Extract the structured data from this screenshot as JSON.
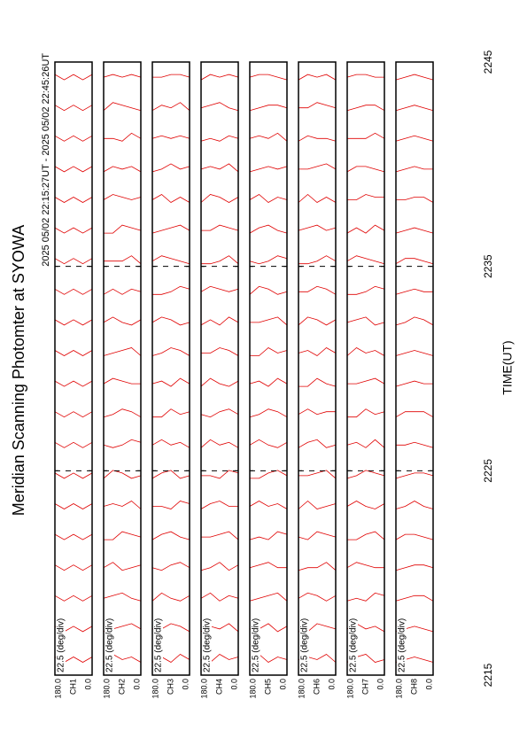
{
  "chart_data": {
    "type": "scan-stack",
    "title": "Meridian Scanning Photomter at SYOWA",
    "subtitle": "2025 05/02 22:15:27UT - 2025 05/02 22:45:26UT",
    "x_label": "TIME(UT)",
    "scale_label": "22.5 (deg/div)",
    "xlim": [
      2215,
      2245
    ],
    "xticks": [
      2215,
      2225,
      2235,
      2245
    ],
    "ylim": [
      0,
      180
    ],
    "yticks": [
      {
        "value": 0,
        "label": "0.0"
      },
      {
        "value": 180,
        "label": "180.0"
      }
    ],
    "grid": true,
    "color": "#e00000",
    "angles": [
      0,
      45,
      90,
      135,
      180
    ],
    "times": [
      2215.5,
      2217,
      2218.5,
      2220,
      2221.5,
      2223,
      2224.5,
      2226,
      2227.5,
      2229,
      2230.5,
      2232,
      2233.5,
      2235,
      2236.5,
      2238,
      2239.5,
      2241,
      2242.5,
      2244
    ],
    "panels": [
      {
        "name": "CH1",
        "scans": [
          [
            3,
            1,
            3,
            1,
            3
          ],
          [
            3,
            1,
            3,
            1,
            3
          ],
          [
            3,
            1,
            3,
            1,
            3
          ],
          [
            3,
            1,
            3,
            1,
            3
          ],
          [
            3,
            1,
            3,
            1,
            3
          ],
          [
            3,
            1,
            3,
            1,
            3
          ],
          [
            3,
            1,
            3,
            1,
            3
          ],
          [
            3,
            1,
            3,
            1,
            3
          ],
          [
            3,
            1,
            3,
            1,
            3
          ],
          [
            3,
            1,
            3,
            1,
            3
          ],
          [
            3,
            1,
            3,
            1,
            3
          ],
          [
            3,
            1,
            3,
            1,
            3
          ],
          [
            3,
            1,
            3,
            1,
            3
          ],
          [
            3,
            1,
            3,
            1,
            3
          ],
          [
            3,
            1,
            3,
            1,
            3
          ],
          [
            3,
            1,
            3,
            1,
            3
          ],
          [
            3,
            1,
            3,
            1,
            3
          ],
          [
            3,
            1,
            3,
            1,
            3
          ],
          [
            3,
            1,
            3,
            1,
            3
          ],
          [
            3,
            1,
            3,
            1,
            3
          ]
        ]
      },
      {
        "name": "CH2",
        "scans": [
          [
            1,
            3,
            2,
            4,
            1
          ],
          [
            2,
            4,
            3,
            2,
            1
          ],
          [
            1,
            2,
            4,
            3,
            2
          ],
          [
            3,
            2,
            1,
            4,
            2
          ],
          [
            2,
            3,
            4,
            1,
            1
          ],
          [
            1,
            4,
            2,
            3,
            2
          ],
          [
            2,
            1,
            3,
            4,
            1
          ],
          [
            3,
            4,
            2,
            1,
            2
          ],
          [
            1,
            3,
            4,
            2,
            1
          ],
          [
            2,
            2,
            3,
            4,
            2
          ],
          [
            1,
            4,
            3,
            2,
            1
          ],
          [
            3,
            1,
            2,
            4,
            2
          ],
          [
            2,
            3,
            1,
            3,
            1
          ],
          [
            1,
            4,
            2,
            2,
            2
          ],
          [
            2,
            3,
            4,
            1,
            1
          ],
          [
            3,
            2,
            3,
            4,
            2
          ],
          [
            1,
            3,
            2,
            3,
            1
          ],
          [
            2,
            4,
            1,
            2,
            2
          ],
          [
            1,
            2,
            3,
            4,
            1
          ],
          [
            2,
            3,
            2,
            3,
            2
          ]
        ]
      },
      {
        "name": "CH3",
        "scans": [
          [
            2,
            4,
            1,
            3,
            1
          ],
          [
            1,
            3,
            4,
            2,
            2
          ],
          [
            3,
            1,
            2,
            4,
            1
          ],
          [
            2,
            4,
            3,
            1,
            2
          ],
          [
            1,
            2,
            4,
            3,
            1
          ],
          [
            3,
            4,
            1,
            2,
            2
          ],
          [
            2,
            1,
            4,
            3,
            1
          ],
          [
            1,
            3,
            2,
            4,
            2
          ],
          [
            3,
            2,
            4,
            1,
            1
          ],
          [
            2,
            4,
            1,
            3,
            2
          ],
          [
            1,
            3,
            4,
            2,
            1
          ],
          [
            2,
            1,
            3,
            4,
            2
          ],
          [
            3,
            4,
            2,
            1,
            1
          ],
          [
            1,
            2,
            3,
            4,
            2
          ],
          [
            2,
            4,
            3,
            2,
            1
          ],
          [
            1,
            3,
            1,
            4,
            2
          ],
          [
            3,
            2,
            4,
            2,
            1
          ],
          [
            2,
            3,
            2,
            3,
            2
          ],
          [
            1,
            4,
            2,
            3,
            1
          ],
          [
            2,
            3,
            3,
            2,
            2
          ]
        ]
      },
      {
        "name": "CH4",
        "scans": [
          [
            3,
            2,
            4,
            1,
            2
          ],
          [
            1,
            4,
            2,
            3,
            1
          ],
          [
            2,
            3,
            1,
            4,
            2
          ],
          [
            3,
            1,
            4,
            2,
            1
          ],
          [
            1,
            4,
            3,
            2,
            2
          ],
          [
            2,
            2,
            4,
            3,
            1
          ],
          [
            3,
            4,
            1,
            2,
            2
          ],
          [
            1,
            3,
            2,
            4,
            1
          ],
          [
            2,
            4,
            3,
            1,
            2
          ],
          [
            3,
            1,
            2,
            4,
            1
          ],
          [
            1,
            3,
            4,
            2,
            2
          ],
          [
            2,
            4,
            1,
            3,
            1
          ],
          [
            3,
            2,
            3,
            4,
            2
          ],
          [
            1,
            4,
            2,
            1,
            1
          ],
          [
            2,
            3,
            4,
            2,
            2
          ],
          [
            3,
            1,
            3,
            4,
            1
          ],
          [
            1,
            4,
            2,
            3,
            2
          ],
          [
            2,
            3,
            1,
            2,
            1
          ],
          [
            1,
            2,
            4,
            3,
            2
          ],
          [
            2,
            3,
            2,
            3,
            1
          ]
        ]
      },
      {
        "name": "CH5",
        "scans": [
          [
            2,
            3,
            1,
            4,
            1
          ],
          [
            3,
            1,
            4,
            2,
            2
          ],
          [
            1,
            4,
            3,
            2,
            1
          ],
          [
            2,
            2,
            4,
            3,
            2
          ],
          [
            3,
            4,
            1,
            2,
            1
          ],
          [
            1,
            3,
            2,
            4,
            2
          ],
          [
            2,
            4,
            3,
            1,
            1
          ],
          [
            3,
            1,
            2,
            4,
            2
          ],
          [
            1,
            3,
            4,
            2,
            1
          ],
          [
            2,
            4,
            1,
            3,
            2
          ],
          [
            3,
            2,
            4,
            1,
            1
          ],
          [
            1,
            4,
            3,
            2,
            2
          ],
          [
            2,
            1,
            3,
            4,
            1
          ],
          [
            3,
            4,
            2,
            1,
            2
          ],
          [
            1,
            2,
            4,
            3,
            1
          ],
          [
            2,
            3,
            1,
            4,
            2
          ],
          [
            3,
            2,
            3,
            2,
            1
          ],
          [
            1,
            4,
            2,
            3,
            2
          ],
          [
            2,
            3,
            3,
            2,
            1
          ],
          [
            1,
            2,
            3,
            3,
            2
          ]
        ]
      },
      {
        "name": "CH6",
        "scans": [
          [
            1,
            4,
            2,
            3,
            2
          ],
          [
            2,
            3,
            4,
            1,
            1
          ],
          [
            3,
            1,
            3,
            4,
            2
          ],
          [
            1,
            4,
            2,
            2,
            1
          ],
          [
            2,
            3,
            4,
            1,
            2
          ],
          [
            3,
            2,
            1,
            4,
            1
          ],
          [
            1,
            4,
            3,
            2,
            2
          ],
          [
            2,
            1,
            4,
            3,
            1
          ],
          [
            3,
            3,
            2,
            4,
            2
          ],
          [
            1,
            2,
            4,
            1,
            1
          ],
          [
            2,
            4,
            1,
            3,
            2
          ],
          [
            3,
            1,
            3,
            4,
            1
          ],
          [
            1,
            3,
            4,
            2,
            2
          ],
          [
            2,
            4,
            2,
            1,
            1
          ],
          [
            3,
            2,
            4,
            3,
            2
          ],
          [
            1,
            3,
            1,
            4,
            1
          ],
          [
            2,
            4,
            3,
            2,
            2
          ],
          [
            1,
            2,
            2,
            3,
            1
          ],
          [
            2,
            3,
            4,
            2,
            2
          ],
          [
            1,
            3,
            2,
            3,
            1
          ]
        ]
      },
      {
        "name": "CH7",
        "scans": [
          [
            2,
            1,
            4,
            3,
            1
          ],
          [
            1,
            3,
            2,
            4,
            2
          ],
          [
            3,
            4,
            1,
            2,
            1
          ],
          [
            2,
            2,
            3,
            4,
            2
          ],
          [
            1,
            4,
            3,
            1,
            1
          ],
          [
            3,
            1,
            2,
            4,
            2
          ],
          [
            2,
            3,
            4,
            2,
            1
          ],
          [
            1,
            4,
            1,
            3,
            2
          ],
          [
            3,
            2,
            4,
            1,
            1
          ],
          [
            2,
            4,
            3,
            2,
            2
          ],
          [
            1,
            3,
            2,
            4,
            1
          ],
          [
            2,
            1,
            4,
            3,
            2
          ],
          [
            3,
            4,
            2,
            1,
            1
          ],
          [
            1,
            2,
            3,
            4,
            2
          ],
          [
            2,
            4,
            1,
            3,
            1
          ],
          [
            3,
            3,
            4,
            2,
            2
          ],
          [
            1,
            2,
            3,
            3,
            1
          ],
          [
            2,
            4,
            2,
            2,
            2
          ],
          [
            1,
            3,
            3,
            2,
            1
          ],
          [
            2,
            2,
            3,
            3,
            2
          ]
        ]
      },
      {
        "name": "CH8",
        "scans": [
          [
            1,
            2,
            3,
            2,
            1
          ],
          [
            1,
            2,
            3,
            2,
            1
          ],
          [
            1,
            3,
            3,
            2,
            1
          ],
          [
            2,
            3,
            3,
            2,
            1
          ],
          [
            1,
            2,
            3,
            3,
            1
          ],
          [
            1,
            2,
            4,
            2,
            1
          ],
          [
            2,
            3,
            3,
            2,
            1
          ],
          [
            1,
            2,
            3,
            2,
            2
          ],
          [
            1,
            3,
            3,
            3,
            1
          ],
          [
            2,
            2,
            3,
            2,
            1
          ],
          [
            1,
            2,
            3,
            2,
            1
          ],
          [
            1,
            3,
            4,
            2,
            1
          ],
          [
            2,
            2,
            3,
            2,
            1
          ],
          [
            1,
            2,
            3,
            3,
            1
          ],
          [
            1,
            2,
            3,
            2,
            1
          ],
          [
            1,
            3,
            3,
            2,
            2
          ],
          [
            2,
            2,
            3,
            2,
            1
          ],
          [
            1,
            2,
            3,
            2,
            1
          ],
          [
            1,
            2,
            3,
            2,
            1
          ],
          [
            1,
            2,
            3,
            2,
            1
          ]
        ]
      }
    ]
  }
}
